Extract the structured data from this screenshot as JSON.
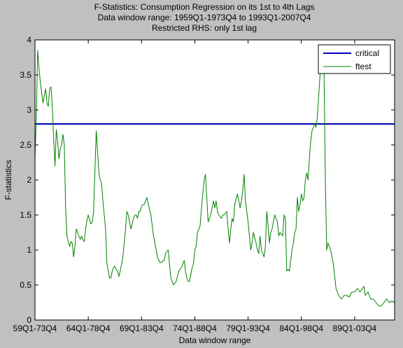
{
  "chart_data": {
    "type": "line",
    "title_lines": [
      "F-Statistics: Consumption Regression on its 1st to 4th Lags",
      "Data window range: 1959Q1-1973Q4 to 1993Q1-2007Q4",
      "Restricted RHS: only 1st lag"
    ],
    "xlabel": "Data window range",
    "ylabel": "F-statistics",
    "xlim": [
      0,
      135
    ],
    "ylim": [
      0,
      4
    ],
    "x_ticks": [
      {
        "pos": 0,
        "label": "59Q1-73Q4"
      },
      {
        "pos": 20,
        "label": "64Q1-78Q4"
      },
      {
        "pos": 40,
        "label": "69Q1-83Q4"
      },
      {
        "pos": 60,
        "label": "74Q1-88Q4"
      },
      {
        "pos": 80,
        "label": "79Q1-93Q4"
      },
      {
        "pos": 100,
        "label": "84Q1-98Q4"
      },
      {
        "pos": 120,
        "label": "89Q1-03Q4"
      }
    ],
    "y_ticks": [
      0,
      0.5,
      1,
      1.5,
      2,
      2.5,
      3,
      3.5,
      4
    ],
    "y_tick_labels": [
      "0",
      "0.5",
      "1",
      "1.5",
      "2",
      "2.5",
      "3",
      "3.5",
      "4"
    ],
    "grid": false,
    "legend_position": "top-right",
    "colors": {
      "figure_bg": "#c0c0c0",
      "axes_bg": "#ffffff",
      "critical": "#0000b4",
      "ftest": "#008000"
    },
    "series": [
      {
        "name": "critical",
        "kind": "hline",
        "y": 2.8
      },
      {
        "name": "ftest",
        "kind": "line",
        "x": [
          0,
          0.5,
          1,
          1.5,
          2,
          2.5,
          3,
          3.5,
          4,
          4.5,
          5,
          5.5,
          6,
          6.5,
          7,
          7.5,
          8,
          8.5,
          9,
          9.5,
          10,
          10.5,
          11,
          11.5,
          12,
          12.5,
          13,
          13.5,
          14,
          14.5,
          15,
          15.5,
          16,
          17,
          17.5,
          18,
          18.5,
          19,
          19.5,
          20,
          21,
          21.5,
          22,
          23,
          24,
          24.5,
          25,
          25.5,
          26,
          26.5,
          27,
          28,
          28.5,
          29,
          29.5,
          30,
          30.5,
          31,
          31.5,
          32,
          32.5,
          33,
          34,
          34.5,
          35,
          36,
          37,
          37.5,
          38,
          38.5,
          39,
          39.5,
          40,
          40.5,
          41,
          41.5,
          42,
          43,
          43.5,
          44,
          44.5,
          45,
          46,
          46.5,
          47,
          47.5,
          48,
          48.5,
          49,
          50,
          51,
          52,
          53,
          54,
          55,
          56,
          56.5,
          57,
          57.5,
          58,
          59,
          59.5,
          60,
          60.5,
          61,
          62,
          62.5,
          63,
          63.5,
          64,
          64.5,
          65,
          66,
          66.5,
          67,
          67.5,
          68,
          68.5,
          69,
          70,
          70.5,
          71,
          72,
          72.5,
          73,
          73.5,
          74,
          74.5,
          75,
          76,
          77,
          77.5,
          78,
          78.5,
          79,
          79.5,
          80,
          80.5,
          81,
          81.5,
          82,
          83,
          83.5,
          84,
          84.5,
          85,
          86,
          86.5,
          87,
          87.5,
          88,
          88.5,
          89,
          89.5,
          90,
          90.5,
          91,
          91.5,
          92,
          93,
          93.5,
          94,
          94.5,
          95,
          95.5,
          96,
          96.5,
          97,
          97.5,
          98,
          98.5,
          99,
          99.5,
          100,
          100.5,
          101,
          101.5,
          102,
          102.5,
          103,
          103.5,
          104,
          104.5,
          105,
          105.5,
          106,
          106.5,
          107,
          107.5,
          108,
          108.5,
          109,
          109.5,
          110,
          111,
          112,
          113,
          114,
          115,
          116,
          117,
          118,
          118.5,
          119,
          120,
          121,
          122,
          123,
          123.5,
          124,
          125,
          126,
          126.5,
          127,
          128,
          129,
          130,
          131,
          132,
          133,
          134,
          135
        ],
        "y": [
          2.3,
          2.9,
          3.85,
          3.6,
          3.4,
          3.25,
          3.1,
          3.2,
          3.3,
          3.1,
          3.05,
          3.3,
          3.33,
          3.05,
          2.6,
          2.2,
          2.72,
          2.55,
          2.3,
          2.45,
          2.5,
          2.65,
          2.5,
          1.6,
          1.2,
          1.12,
          1.05,
          1.12,
          1.1,
          0.9,
          1.05,
          1.3,
          1.25,
          1.15,
          1.2,
          1.15,
          1.12,
          1.3,
          1.42,
          1.5,
          1.37,
          1.4,
          1.55,
          2.7,
          2.1,
          2.0,
          1.95,
          1.7,
          1.5,
          1.3,
          0.8,
          0.6,
          0.6,
          0.7,
          0.75,
          0.77,
          0.72,
          0.7,
          0.62,
          0.7,
          0.8,
          0.9,
          1.3,
          1.55,
          1.5,
          1.3,
          1.45,
          1.5,
          1.5,
          1.45,
          1.55,
          1.55,
          1.62,
          1.65,
          1.65,
          1.7,
          1.75,
          1.58,
          1.5,
          1.35,
          1.2,
          1.1,
          0.9,
          0.85,
          0.82,
          0.82,
          0.85,
          0.85,
          0.95,
          1.0,
          0.6,
          0.5,
          0.55,
          0.7,
          0.75,
          0.85,
          0.7,
          0.6,
          0.55,
          0.55,
          0.75,
          0.8,
          1.0,
          1.05,
          1.25,
          1.35,
          1.6,
          1.8,
          2.0,
          2.08,
          1.75,
          1.4,
          1.5,
          1.6,
          1.7,
          1.6,
          1.7,
          1.55,
          1.5,
          1.45,
          1.5,
          1.5,
          1.55,
          1.3,
          1.1,
          1.3,
          1.45,
          1.4,
          1.65,
          1.8,
          1.6,
          1.7,
          1.85,
          2.08,
          1.7,
          1.55,
          1.4,
          1.2,
          1.0,
          1.1,
          1.25,
          1.1,
          1.0,
          0.95,
          1.2,
          1.0,
          0.9,
          1.05,
          1.55,
          1.35,
          1.1,
          1.25,
          1.3,
          1.4,
          1.5,
          1.45,
          1.4,
          1.2,
          1.25,
          1.2,
          1.5,
          1.45,
          0.7,
          0.72,
          0.7,
          0.85,
          1.0,
          1.1,
          1.25,
          1.3,
          1.75,
          1.55,
          1.65,
          1.8,
          1.7,
          1.75,
          2.0,
          2.1,
          2.0,
          2.3,
          2.55,
          2.7,
          2.75,
          2.8,
          2.75,
          2.9,
          3.2,
          3.5,
          3.7,
          3.7,
          3.6,
          2.0,
          1.0,
          1.1,
          1.0,
          0.8,
          0.45,
          0.35,
          0.3,
          0.35,
          0.35,
          0.33,
          0.37,
          0.4,
          0.4,
          0.45,
          0.4,
          0.45,
          0.48,
          0.35,
          0.4,
          0.3,
          0.3,
          0.3,
          0.25,
          0.2,
          0.2,
          0.25,
          0.3,
          0.25,
          0.27,
          0.25
        ]
      }
    ]
  }
}
